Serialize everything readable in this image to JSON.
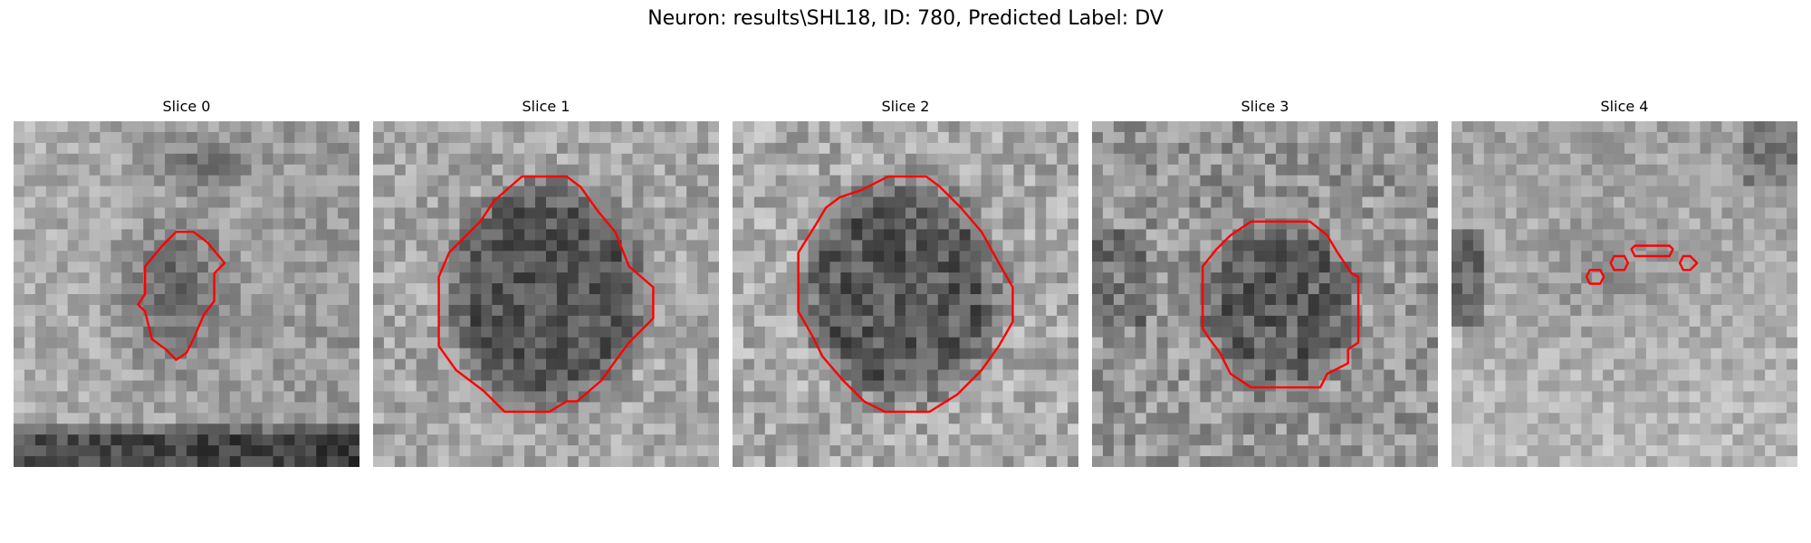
{
  "figure": {
    "title": "Neuron: results\\SHL18, ID: 780, Predicted Label: DV"
  },
  "slices": [
    {
      "title": "Slice 0"
    },
    {
      "title": "Slice 1"
    },
    {
      "title": "Slice 2"
    },
    {
      "title": "Slice 3"
    },
    {
      "title": "Slice 4"
    }
  ],
  "colors": {
    "contour": "#ff0000",
    "background": "#ffffff"
  }
}
